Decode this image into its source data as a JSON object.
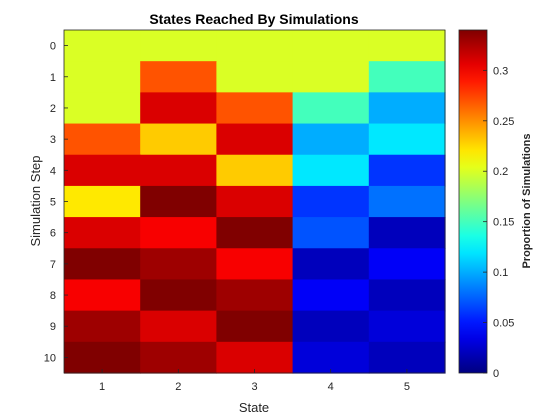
{
  "chart_data": {
    "type": "heatmap",
    "title": "States Reached By Simulations",
    "xlabel": "State",
    "ylabel": "Simulation Step",
    "x_categories": [
      "1",
      "2",
      "3",
      "4",
      "5"
    ],
    "y_categories": [
      "0",
      "1",
      "2",
      "3",
      "4",
      "5",
      "6",
      "7",
      "8",
      "9",
      "10"
    ],
    "values": [
      [
        0.2,
        0.2,
        0.2,
        0.2,
        0.2
      ],
      [
        0.2,
        0.27,
        0.2,
        0.2,
        0.15
      ],
      [
        0.2,
        0.31,
        0.27,
        0.15,
        0.1
      ],
      [
        0.27,
        0.23,
        0.31,
        0.1,
        0.12
      ],
      [
        0.31,
        0.31,
        0.23,
        0.12,
        0.06
      ],
      [
        0.22,
        0.34,
        0.31,
        0.06,
        0.08
      ],
      [
        0.31,
        0.3,
        0.34,
        0.07,
        0.02
      ],
      [
        0.34,
        0.33,
        0.3,
        0.02,
        0.04
      ],
      [
        0.3,
        0.34,
        0.33,
        0.04,
        0.02
      ],
      [
        0.33,
        0.31,
        0.34,
        0.02,
        0.03
      ],
      [
        0.34,
        0.33,
        0.31,
        0.03,
        0.02
      ]
    ],
    "colorbar": {
      "label": "Proportion of Simulations",
      "range": [
        0,
        0.34
      ],
      "ticks": [
        "0",
        "0.05",
        "0.1",
        "0.15",
        "0.2",
        "0.25",
        "0.3"
      ],
      "colormap": "jet"
    },
    "grid": false
  }
}
